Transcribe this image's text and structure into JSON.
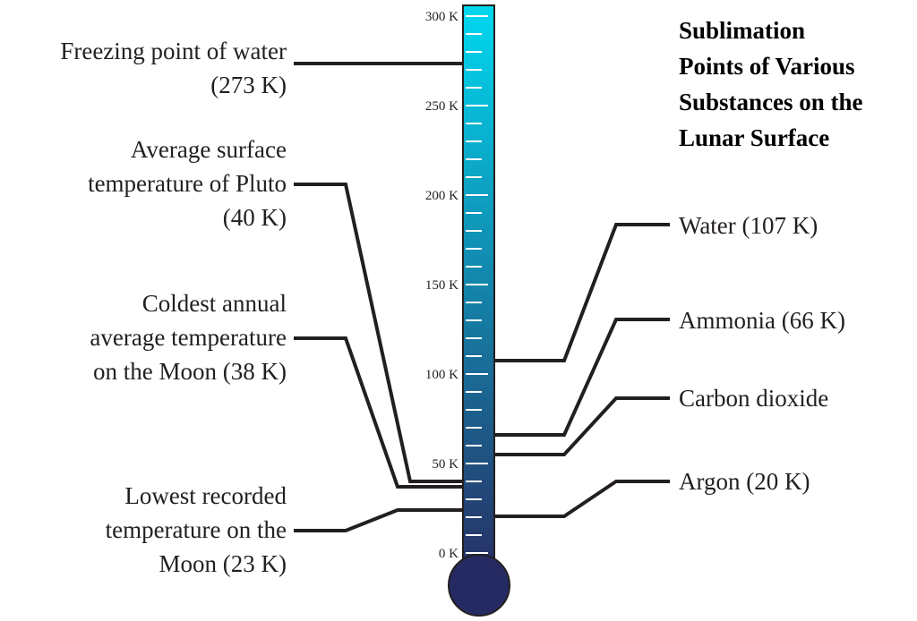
{
  "title": {
    "lines": [
      "Sublimation",
      "Points of Various",
      "Substances on the",
      "Lunar Surface"
    ]
  },
  "scale": {
    "unit": "K",
    "tick_labels": [
      "300 K",
      "250 K",
      "200 K",
      "150 K",
      "100 K",
      "50 K",
      "0 K"
    ]
  },
  "left_labels": [
    {
      "lines": [
        "Freezing point of water",
        "(273 K)"
      ],
      "value_k": 273
    },
    {
      "lines": [
        "Average surface",
        "temperature of Pluto",
        "(40 K)"
      ],
      "value_k": 40
    },
    {
      "lines": [
        "Coldest annual",
        "average temperature",
        "on the Moon (38 K)"
      ],
      "value_k": 38
    },
    {
      "lines": [
        "Lowest recorded",
        "temperature on the",
        "Moon (23 K)"
      ],
      "value_k": 23
    }
  ],
  "right_labels": [
    {
      "lines": [
        "Water (107 K)"
      ],
      "value_k": 107
    },
    {
      "lines": [
        "Ammonia (66 K)"
      ],
      "value_k": 66
    },
    {
      "lines": [
        "Carbon dioxide"
      ],
      "value_k": 55
    },
    {
      "lines": [
        "Argon (20 K)"
      ],
      "value_k": 20
    }
  ],
  "colors": {
    "tube_top": "#00d8ef",
    "tube_bottom": "#273065",
    "bulb": "#262a63",
    "outline": "#231f20",
    "leader": "#231f20"
  }
}
